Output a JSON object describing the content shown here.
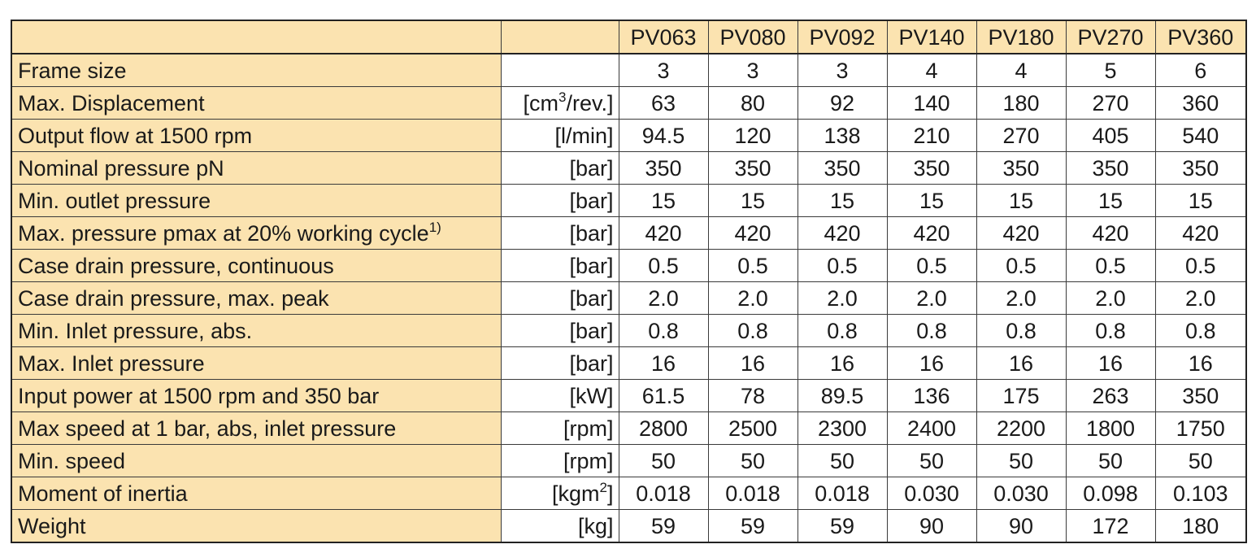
{
  "table": {
    "models": [
      "PV063",
      "PV080",
      "PV092",
      "PV140",
      "PV180",
      "PV270",
      "PV360"
    ],
    "rows": [
      {
        "parameter": "Frame size",
        "unit": "",
        "values": [
          "3",
          "3",
          "3",
          "4",
          "4",
          "5",
          "6"
        ]
      },
      {
        "parameter": "Max. Displacement",
        "unit": "[cm",
        "unit_sup": "3",
        "unit_suffix": "/rev.]",
        "values": [
          "63",
          "80",
          "92",
          "140",
          "180",
          "270",
          "360"
        ]
      },
      {
        "parameter": "Output flow at 1500 rpm",
        "unit": "[l/min]",
        "values": [
          "94.5",
          "120",
          "138",
          "210",
          "270",
          "405",
          "540"
        ]
      },
      {
        "parameter": "Nominal pressure pN",
        "unit": "[bar]",
        "values": [
          "350",
          "350",
          "350",
          "350",
          "350",
          "350",
          "350"
        ]
      },
      {
        "parameter": "Min. outlet pressure",
        "unit": "[bar]",
        "values": [
          "15",
          "15",
          "15",
          "15",
          "15",
          "15",
          "15"
        ]
      },
      {
        "parameter": "Max. pressure pmax at 20% working cycle",
        "parameter_sup": "1)",
        "unit": "[bar]",
        "values": [
          "420",
          "420",
          "420",
          "420",
          "420",
          "420",
          "420"
        ]
      },
      {
        "parameter": "Case drain pressure, continuous",
        "unit": "[bar]",
        "values": [
          "0.5",
          "0.5",
          "0.5",
          "0.5",
          "0.5",
          "0.5",
          "0.5"
        ]
      },
      {
        "parameter": "Case drain pressure, max. peak",
        "unit": "[bar]",
        "values": [
          "2.0",
          "2.0",
          "2.0",
          "2.0",
          "2.0",
          "2.0",
          "2.0"
        ]
      },
      {
        "parameter": "Min. Inlet pressure, abs.",
        "unit": "[bar]",
        "values": [
          "0.8",
          "0.8",
          "0.8",
          "0.8",
          "0.8",
          "0.8",
          "0.8"
        ]
      },
      {
        "parameter": "Max. Inlet pressure",
        "unit": "[bar]",
        "values": [
          "16",
          "16",
          "16",
          "16",
          "16",
          "16",
          "16"
        ]
      },
      {
        "parameter": "Input power at 1500 rpm and 350 bar",
        "unit": "[kW]",
        "values": [
          "61.5",
          "78",
          "89.5",
          "136",
          "175",
          "263",
          "350"
        ]
      },
      {
        "parameter": "Max speed at 1 bar, abs, inlet pressure",
        "unit": "[rpm]",
        "values": [
          "2800",
          "2500",
          "2300",
          "2400",
          "2200",
          "1800",
          "1750"
        ]
      },
      {
        "parameter": "Min. speed",
        "unit": "[rpm]",
        "values": [
          "50",
          "50",
          "50",
          "50",
          "50",
          "50",
          "50"
        ]
      },
      {
        "parameter": "Moment of inertia",
        "unit": "[kgm",
        "unit_sup": "2",
        "unit_suffix": "]",
        "values": [
          "0.018",
          "0.018",
          "0.018",
          "0.030",
          "0.030",
          "0.098",
          "0.103"
        ]
      },
      {
        "parameter": "Weight",
        "unit": "[kg]",
        "values": [
          "59",
          "59",
          "59",
          "90",
          "90",
          "172",
          "180"
        ]
      }
    ]
  },
  "colors": {
    "header_fill": "#fbe3b0",
    "border": "#3a3a3a",
    "text": "#1a1a1a"
  }
}
